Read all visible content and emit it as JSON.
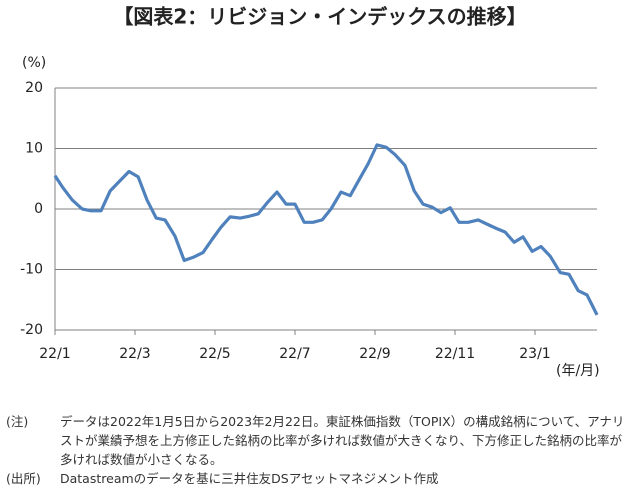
{
  "chart_data": {
    "type": "line",
    "title": "【図表2：リビジョン・インデックスの推移】",
    "y_label": "(%)",
    "x_label": "(年/月)",
    "x": [
      0,
      0.2,
      0.43,
      0.68,
      0.9,
      1.15,
      1.38,
      1.6,
      1.85,
      2.08,
      2.3,
      2.53,
      2.75,
      3,
      3.23,
      3.45,
      3.7,
      3.93,
      4.15,
      4.38,
      4.63,
      4.85,
      5.08,
      5.3,
      5.55,
      5.78,
      6,
      6.23,
      6.45,
      6.68,
      6.9,
      7.15,
      7.38,
      7.6,
      7.83,
      8.05,
      8.28,
      8.5,
      8.75,
      8.98,
      9.2,
      9.43,
      9.65,
      9.88,
      10.1,
      10.33,
      10.58,
      10.8,
      11.03,
      11.25,
      11.48,
      11.7,
      11.93,
      12.15,
      12.38,
      12.63,
      12.85,
      13.08,
      13.3,
      13.55
    ],
    "series": [
      {
        "color": "#4f81bd",
        "values": [
          5.5,
          3.5,
          1.5,
          0,
          -0.3,
          -0.3,
          3,
          4.5,
          6.2,
          5.3,
          1.5,
          -1.5,
          -1.8,
          -4.5,
          -8.5,
          -8,
          -7.2,
          -5,
          -3,
          -1.3,
          -1.5,
          -1.2,
          -0.8,
          1,
          2.8,
          0.8,
          0.8,
          -2.2,
          -2.2,
          -1.8,
          0,
          2.8,
          2.2,
          4.8,
          7.5,
          10.6,
          10.2,
          9,
          7.2,
          3,
          0.8,
          0.3,
          -0.6,
          0.2,
          -2.2,
          -2.2,
          -1.8,
          -2.5,
          -3.2,
          -3.8,
          -5.5,
          -4.6,
          -7,
          -6.2,
          -7.8,
          -10.5,
          -10.8,
          -13.5,
          -14.2,
          -17.5
        ]
      }
    ],
    "xlim": [
      0,
      13.55
    ],
    "xticks": [
      {
        "value": 0,
        "label": "22/1"
      },
      {
        "value": 2,
        "label": "22/3"
      },
      {
        "value": 4,
        "label": "22/5"
      },
      {
        "value": 6,
        "label": "22/7"
      },
      {
        "value": 8,
        "label": "22/9"
      },
      {
        "value": 10,
        "label": "22/11"
      },
      {
        "value": 12,
        "label": "23/1"
      }
    ],
    "ylim": [
      -20,
      20
    ],
    "yticks": [
      -20,
      -10,
      0,
      10,
      20
    ],
    "grid": true
  },
  "notes": [
    {
      "label": "(注)",
      "text": "データは2022年1月5日から2023年2月22日。東証株価指数（TOPIX）の構成銘柄について、アナリストが業績予想を上方修正した銘柄の比率が多ければ数値が大きくなり、下方修正した銘柄の比率が多ければ数値が小さくなる。"
    },
    {
      "label": "(出所)",
      "text": "Datastreamのデータを基に三井住友DSアセットマネジメント作成"
    }
  ]
}
